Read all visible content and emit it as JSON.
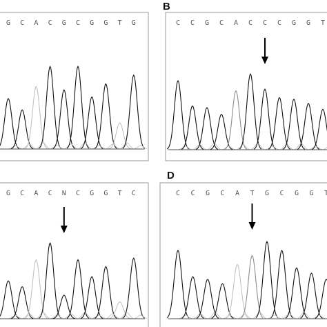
{
  "colors": {
    "trace_black": "#111111",
    "trace_gray": "#8c8c8c",
    "trace_light": "#c2c2c2",
    "frame": "#9a9a9a",
    "arrow": "#000000"
  },
  "panels": [
    {
      "id": "A",
      "label": "",
      "bases": [
        "G",
        "C",
        "A",
        "C",
        "G",
        "C",
        "G",
        "G",
        "T",
        "G"
      ],
      "peaks": [
        {
          "h": 0.58,
          "c": "black"
        },
        {
          "h": 0.45,
          "c": "black"
        },
        {
          "h": 0.72,
          "c": "light"
        },
        {
          "h": 0.95,
          "c": "black"
        },
        {
          "h": 0.68,
          "c": "black"
        },
        {
          "h": 0.95,
          "c": "black"
        },
        {
          "h": 0.6,
          "c": "black"
        },
        {
          "h": 0.75,
          "c": "black"
        },
        {
          "h": 0.3,
          "c": "light"
        },
        {
          "h": 0.85,
          "c": "black"
        }
      ],
      "arrow_index": null
    },
    {
      "id": "B",
      "label": "B",
      "bases": [
        "C",
        "C",
        "G",
        "C",
        "A",
        "C",
        "C",
        "C",
        "G",
        "G",
        "T"
      ],
      "peaks": [
        {
          "h": 0.82,
          "c": "black"
        },
        {
          "h": 0.52,
          "c": "black"
        },
        {
          "h": 0.5,
          "c": "black"
        },
        {
          "h": 0.42,
          "c": "black"
        },
        {
          "h": 0.7,
          "c": "gray"
        },
        {
          "h": 0.9,
          "c": "black"
        },
        {
          "h": 0.72,
          "c": "black"
        },
        {
          "h": 0.62,
          "c": "black"
        },
        {
          "h": 0.6,
          "c": "black"
        },
        {
          "h": 0.55,
          "c": "black"
        },
        {
          "h": 0.48,
          "c": "black"
        }
      ],
      "arrow_index": 6
    },
    {
      "id": "C",
      "label": "",
      "bases": [
        "G",
        "C",
        "A",
        "C",
        "N",
        "C",
        "G",
        "G",
        "T",
        "C"
      ],
      "peaks": [
        {
          "h": 0.45,
          "c": "black"
        },
        {
          "h": 0.38,
          "c": "black"
        },
        {
          "h": 0.7,
          "c": "light"
        },
        {
          "h": 0.9,
          "c": "black"
        },
        {
          "h": 0.28,
          "c": "black"
        },
        {
          "h": 0.7,
          "c": "black"
        },
        {
          "h": 0.5,
          "c": "black"
        },
        {
          "h": 0.62,
          "c": "black"
        },
        {
          "h": 0.2,
          "c": "light"
        },
        {
          "h": 0.72,
          "c": "black"
        }
      ],
      "arrow_index": 4
    },
    {
      "id": "D",
      "label": "D",
      "bases": [
        "C",
        "C",
        "G",
        "C",
        "A",
        "T",
        "G",
        "C",
        "G",
        "G",
        "T"
      ],
      "peaks": [
        {
          "h": 0.78,
          "c": "black"
        },
        {
          "h": 0.48,
          "c": "black"
        },
        {
          "h": 0.45,
          "c": "black"
        },
        {
          "h": 0.4,
          "c": "black"
        },
        {
          "h": 0.62,
          "c": "light"
        },
        {
          "h": 0.72,
          "c": "gray"
        },
        {
          "h": 0.88,
          "c": "black"
        },
        {
          "h": 0.78,
          "c": "black"
        },
        {
          "h": 0.58,
          "c": "black"
        },
        {
          "h": 0.52,
          "c": "black"
        },
        {
          "h": 0.45,
          "c": "black"
        }
      ],
      "arrow_index": 5
    }
  ]
}
